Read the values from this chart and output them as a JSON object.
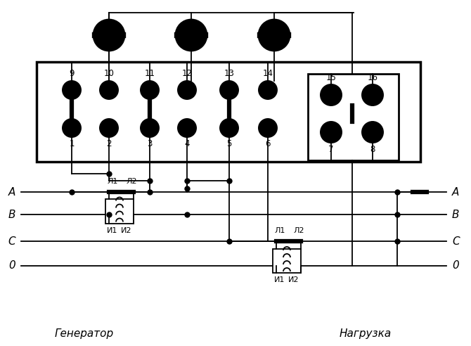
{
  "bg_color": "#ffffff",
  "fig_width": 6.7,
  "fig_height": 4.92,
  "dpi": 100,
  "generator_label": "Генератор",
  "load_label": "Нагрузка",
  "phase_A": "А",
  "phase_B": "В",
  "phase_C": "С",
  "phase_0": "0",
  "L1": "Л1",
  "L2": "Л2",
  "I1": "И1",
  "I2": "И2"
}
